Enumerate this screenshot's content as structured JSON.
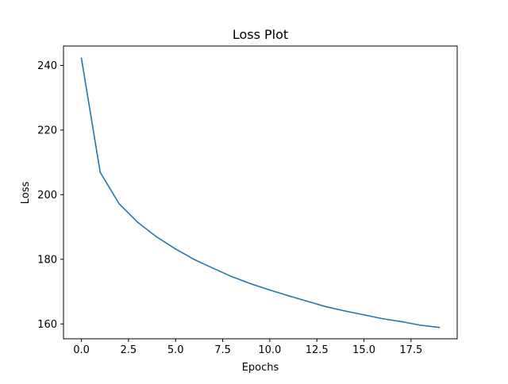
{
  "chart_data": {
    "type": "line",
    "title": "Loss Plot",
    "xlabel": "Epochs",
    "ylabel": "Loss",
    "xlim": [
      -0.95,
      19.95
    ],
    "ylim": [
      155.4,
      246.0
    ],
    "xticks": [
      0.0,
      2.5,
      5.0,
      7.5,
      10.0,
      12.5,
      15.0,
      17.5
    ],
    "xtick_labels": [
      "0.0",
      "2.5",
      "5.0",
      "7.5",
      "10.0",
      "12.5",
      "15.0",
      "17.5"
    ],
    "yticks": [
      160,
      180,
      200,
      220,
      240
    ],
    "ytick_labels": [
      "160",
      "180",
      "200",
      "220",
      "240"
    ],
    "grid": false,
    "series": [
      {
        "color": "#1f77b4",
        "x": [
          0,
          1,
          2,
          3,
          4,
          5,
          6,
          7,
          8,
          9,
          10,
          11,
          12,
          13,
          14,
          15,
          16,
          17,
          18,
          19
        ],
        "y": [
          242.2,
          206.9,
          197.2,
          191.4,
          186.9,
          183.2,
          179.9,
          177.2,
          174.6,
          172.4,
          170.5,
          168.7,
          167.0,
          165.3,
          164.0,
          162.8,
          161.6,
          160.7,
          159.6,
          158.9
        ]
      }
    ]
  }
}
